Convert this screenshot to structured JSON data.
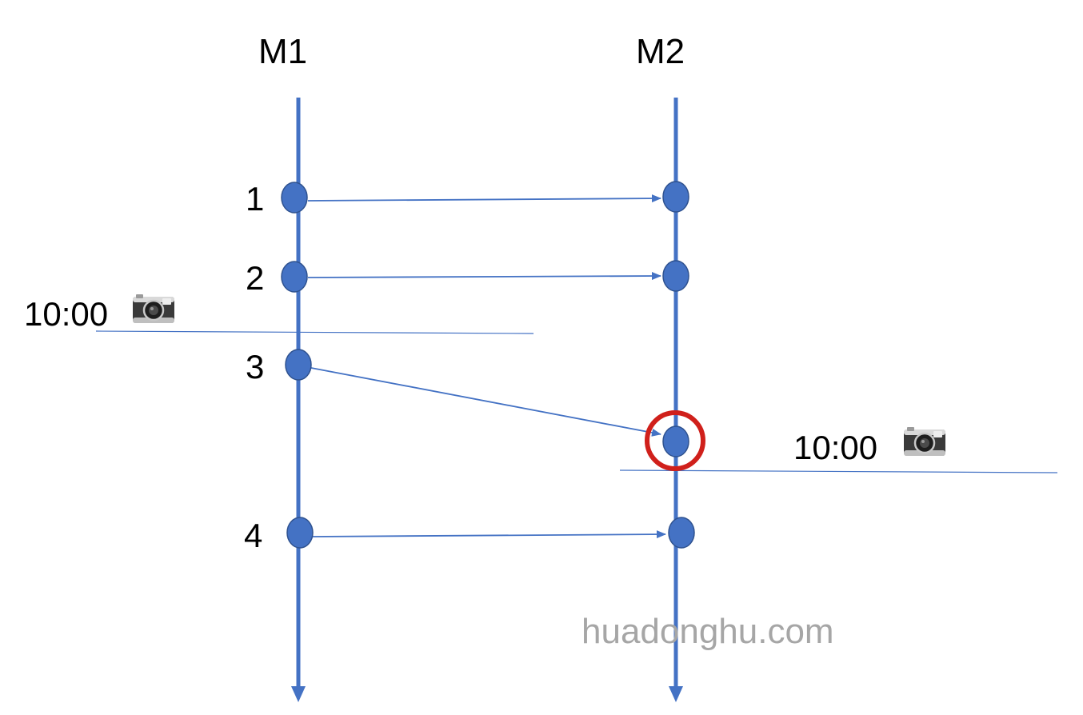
{
  "machines": [
    {
      "label": "M1"
    },
    {
      "label": "M2"
    }
  ],
  "messages": [
    {
      "label": "1"
    },
    {
      "label": "2"
    },
    {
      "label": "3"
    },
    {
      "label": "4"
    }
  ],
  "snapshots": [
    {
      "time": "10:00",
      "icon": "camera-icon"
    },
    {
      "time": "10:00",
      "icon": "camera-icon"
    }
  ],
  "watermark": "huadonghu.com",
  "colors": {
    "timeline": "#4472c4",
    "node": "#4472c4",
    "highlight_ring": "#d0201b",
    "watermark": "#a6a6a6"
  }
}
